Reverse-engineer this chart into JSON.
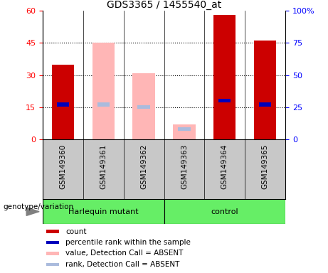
{
  "title": "GDS3365 / 1455540_at",
  "samples": [
    "GSM149360",
    "GSM149361",
    "GSM149362",
    "GSM149363",
    "GSM149364",
    "GSM149365"
  ],
  "count_values": [
    35,
    0,
    0,
    0,
    58,
    46
  ],
  "percentile_values": [
    27,
    0,
    0,
    0,
    30,
    27
  ],
  "absent_value_values": [
    0,
    45,
    31,
    7,
    0,
    0
  ],
  "absent_rank_values": [
    0,
    27,
    25,
    8,
    0,
    0
  ],
  "detection_call": [
    "P",
    "A",
    "A",
    "A",
    "P",
    "P"
  ],
  "group_harlequin": [
    0,
    1,
    2
  ],
  "group_control": [
    3,
    4,
    5
  ],
  "ylim_left": [
    0,
    60
  ],
  "ylim_right": [
    0,
    100
  ],
  "yticks_left": [
    0,
    15,
    30,
    45,
    60
  ],
  "yticks_right": [
    0,
    25,
    50,
    75,
    100
  ],
  "bar_width": 0.55,
  "colors": {
    "count": "#CC0000",
    "percentile": "#0000BB",
    "absent_value": "#FFB6B6",
    "absent_rank": "#AABBDD",
    "group_bg": "#66EE66",
    "tick_area_bg": "#C8C8C8",
    "plot_bg": "#FFFFFF"
  },
  "legend_items": [
    {
      "label": "count",
      "color": "#CC0000"
    },
    {
      "label": "percentile rank within the sample",
      "color": "#0000BB"
    },
    {
      "label": "value, Detection Call = ABSENT",
      "color": "#FFB6B6"
    },
    {
      "label": "rank, Detection Call = ABSENT",
      "color": "#AABBDD"
    }
  ]
}
